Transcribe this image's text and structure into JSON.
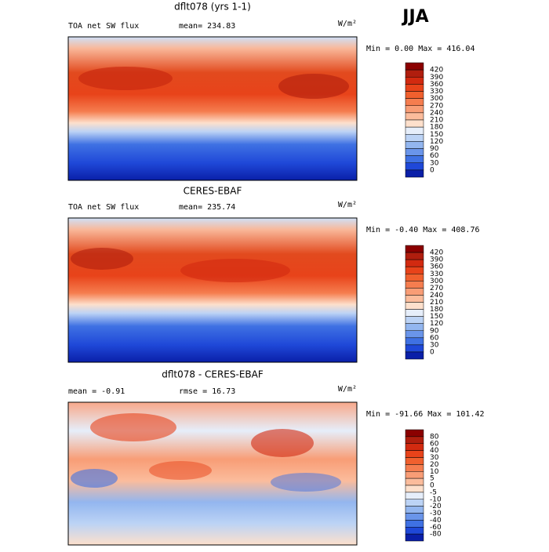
{
  "season": "JJA",
  "panels": [
    {
      "title": "dflt078 (yrs 1-1)",
      "left": "TOA net SW flux",
      "center": "mean= 234.83",
      "units": "W/m²",
      "minmax": "Min =    0.00 Max = 416.04",
      "colorbar": {
        "labels": [
          "420",
          "390",
          "360",
          "330",
          "300",
          "270",
          "240",
          "210",
          "180",
          "150",
          "120",
          "90",
          "60",
          "30",
          "0"
        ],
        "colors": [
          "#8b0000",
          "#b01e0e",
          "#d22a10",
          "#e8431a",
          "#f0602e",
          "#f57d4f",
          "#f89d76",
          "#fbbc9c",
          "#fde0cc",
          "#e6eefa",
          "#bcd3f5",
          "#93b6ef",
          "#6a95ea",
          "#3f71e3",
          "#1f48d8",
          "#0a1fa8"
        ]
      }
    },
    {
      "title": "CERES-EBAF",
      "left": "TOA net SW flux",
      "center": "mean= 235.74",
      "units": "W/m²",
      "minmax": "Min =   -0.40 Max = 408.76",
      "colorbar": {
        "labels": [
          "420",
          "390",
          "360",
          "330",
          "300",
          "270",
          "240",
          "210",
          "180",
          "150",
          "120",
          "90",
          "60",
          "30",
          "0"
        ],
        "colors": [
          "#8b0000",
          "#b01e0e",
          "#d22a10",
          "#e8431a",
          "#f0602e",
          "#f57d4f",
          "#f89d76",
          "#fbbc9c",
          "#fde0cc",
          "#e6eefa",
          "#bcd3f5",
          "#93b6ef",
          "#6a95ea",
          "#3f71e3",
          "#1f48d8",
          "#0a1fa8"
        ]
      }
    },
    {
      "title": "dflt078 - CERES-EBAF",
      "left": "mean =   -0.91",
      "center": "rmse =  16.73",
      "units": "W/m²",
      "minmax": "Min = -91.66 Max = 101.42",
      "colorbar": {
        "labels": [
          "80",
          "60",
          "40",
          "30",
          "20",
          "10",
          "5",
          "0",
          "-5",
          "-10",
          "-20",
          "-30",
          "-40",
          "-60",
          "-80"
        ],
        "colors": [
          "#8b0000",
          "#b01e0e",
          "#d22a10",
          "#e8431a",
          "#f0602e",
          "#f57d4f",
          "#f89d76",
          "#fbbc9c",
          "#fde0cc",
          "#e6eefa",
          "#bcd3f5",
          "#93b6ef",
          "#6a95ea",
          "#3f71e3",
          "#1f48d8",
          "#0a1fa8"
        ]
      }
    }
  ]
}
